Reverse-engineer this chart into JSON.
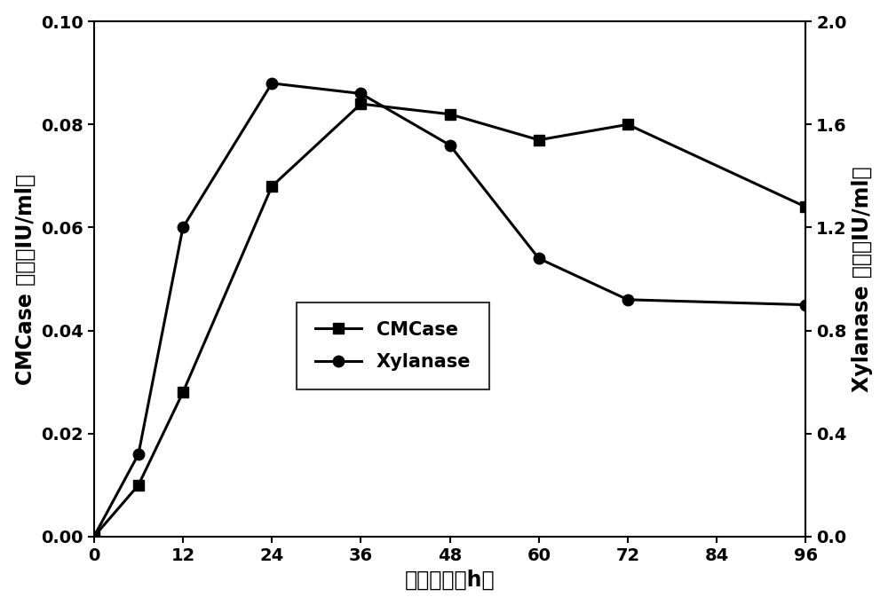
{
  "x": [
    0,
    6,
    12,
    24,
    36,
    48,
    60,
    72,
    96
  ],
  "cmcase_y": [
    0.0,
    0.01,
    0.028,
    0.068,
    0.084,
    0.082,
    0.077,
    0.08,
    0.064
  ],
  "xylanase_y_right": [
    0.0,
    0.32,
    1.2,
    1.76,
    1.72,
    1.52,
    1.08,
    0.92,
    0.9
  ],
  "xlim": [
    0,
    96
  ],
  "ylim_left": [
    0,
    0.1
  ],
  "ylim_right": [
    0.0,
    2.0
  ],
  "xticks": [
    0,
    12,
    24,
    36,
    48,
    60,
    72,
    84,
    96
  ],
  "yticks_left": [
    0.0,
    0.02,
    0.04,
    0.06,
    0.08,
    0.1
  ],
  "yticks_right": [
    0.0,
    0.4,
    0.8,
    1.2,
    1.6,
    2.0
  ],
  "xlabel": "培养时间（h）",
  "ylabel_left": "CMCase 活力（IU/ml）",
  "ylabel_right": "Xylanase 活力（IU/ml）",
  "legend_cmcase": "CMCase",
  "legend_xylanase": "Xylanase",
  "line_color": "#000000",
  "marker_square": "s",
  "marker_circle": "o",
  "marker_size": 9,
  "line_width": 2.2,
  "font_size_label": 17,
  "font_size_tick": 14,
  "font_size_legend": 15
}
